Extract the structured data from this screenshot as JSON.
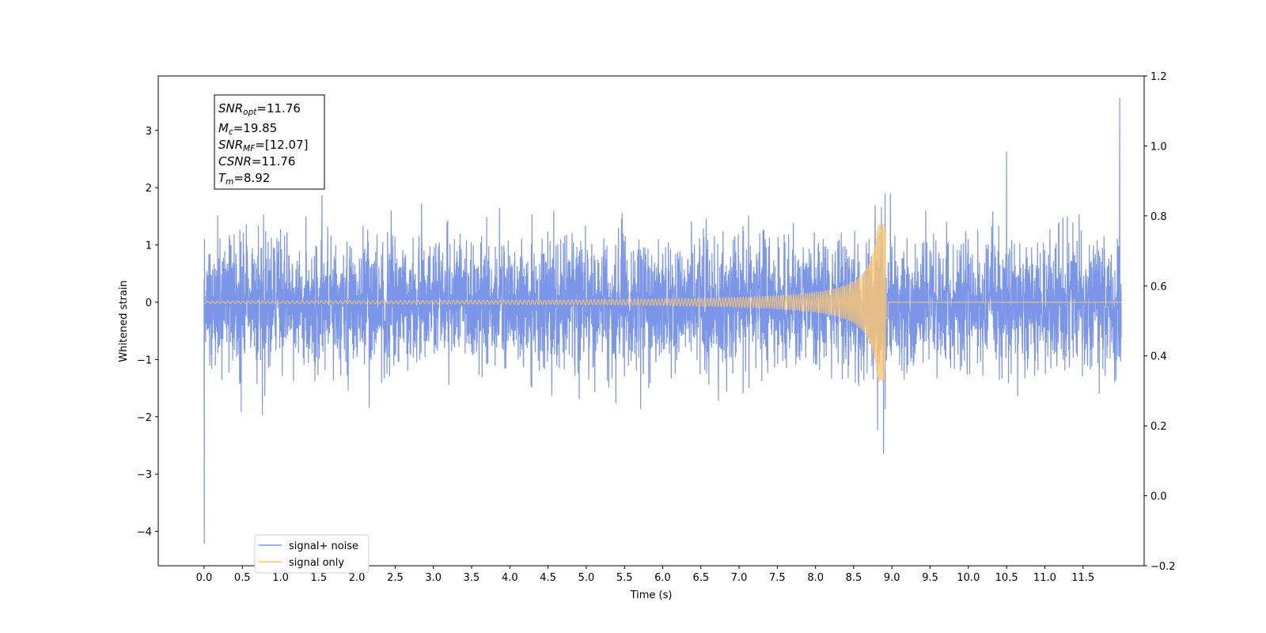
{
  "chart_data": {
    "type": "line",
    "title": "",
    "xlabel": "Time (s)",
    "ylabel": "Whitened strain",
    "xlim": [
      -0.6,
      12.3
    ],
    "ylim": [
      -4.6,
      3.95
    ],
    "y2lim": [
      -0.2,
      1.2
    ],
    "x_ticks": [
      0.0,
      0.5,
      1.0,
      1.5,
      2.0,
      2.5,
      3.0,
      3.5,
      4.0,
      4.5,
      5.0,
      5.5,
      6.0,
      6.5,
      7.0,
      7.5,
      8.0,
      8.5,
      9.0,
      9.5,
      10.0,
      10.5,
      11.0,
      11.5
    ],
    "x_tick_labels": [
      "0.0",
      "0.5",
      "1.0",
      "1.5",
      "2.0",
      "2.5",
      "3.0",
      "3.5",
      "4.0",
      "4.5",
      "5.0",
      "5.5",
      "6.0",
      "6.5",
      "7.0",
      "7.5",
      "8.0",
      "8.5",
      "9.0",
      "9.5",
      "10.0",
      "10.5",
      "11.0",
      "11.5"
    ],
    "y_ticks": [
      -4,
      -3,
      -2,
      -1,
      0,
      1,
      2,
      3
    ],
    "y_tick_labels": [
      "−4",
      "−3",
      "−2",
      "−1",
      "0",
      "1",
      "2",
      "3"
    ],
    "y2_ticks": [
      -0.2,
      0.0,
      0.2,
      0.4,
      0.6,
      0.8,
      1.0,
      1.2
    ],
    "y2_tick_labels": [
      "−0.2",
      "0.0",
      "0.2",
      "0.4",
      "0.6",
      "0.8",
      "1.0",
      "1.2"
    ],
    "grid": false,
    "legend_position": "bottom-left",
    "info_box": [
      {
        "sym": "SNR",
        "sub": "opt",
        "value": "=11.76"
      },
      {
        "sym": "M",
        "sub": "c",
        "value": "=19.85"
      },
      {
        "sym": "SNR",
        "sub": "MF",
        "value": "=[12.07]"
      },
      {
        "sym": "CSNR",
        "sub": "",
        "value": "=11.76"
      },
      {
        "sym": "T",
        "sub": "m",
        "value": "=8.92"
      }
    ],
    "series": [
      {
        "name": "signal+ noise",
        "color": "#7b96e8",
        "t_start": 0.0,
        "t_end": 12.0,
        "noise_sigma": 0.55,
        "max_value": 3.57,
        "max_time": 11.98,
        "min_value": -4.22,
        "min_time": 0.0
      },
      {
        "name": "signal only",
        "color": "#ffc870",
        "t_start": 0.0,
        "t_end": 12.0,
        "merger_time": 8.92,
        "peak_amplitude": 1.4
      }
    ]
  }
}
